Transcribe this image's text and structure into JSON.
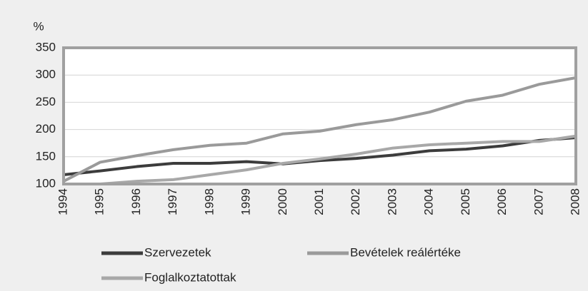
{
  "chart_data": {
    "type": "line",
    "y_label": "%",
    "categories": [
      "1994",
      "1995",
      "1996",
      "1997",
      "1998",
      "1999",
      "2000",
      "2001",
      "2002",
      "2003",
      "2004",
      "2005",
      "2006",
      "2007",
      "2008"
    ],
    "series": [
      {
        "name": "Szervezetek",
        "color": "#3c3c3c",
        "values": [
          117,
          124,
          132,
          138,
          138,
          141,
          137,
          143,
          147,
          153,
          161,
          164,
          170,
          180,
          185
        ]
      },
      {
        "name": "Bevételek reálértéke",
        "color": "#9a9a9a",
        "values": [
          105,
          140,
          152,
          163,
          171,
          175,
          192,
          197,
          209,
          218,
          232,
          252,
          263,
          283,
          295
        ]
      },
      {
        "name": "Foglalkoztatottak",
        "color": "#a8a8a8",
        "values": [
          100,
          100,
          105,
          108,
          117,
          126,
          138,
          146,
          155,
          166,
          172,
          175,
          178,
          178,
          188
        ]
      }
    ],
    "ylim": [
      100,
      350
    ],
    "yticks": [
      100,
      150,
      200,
      250,
      300,
      350
    ],
    "grid": true
  }
}
